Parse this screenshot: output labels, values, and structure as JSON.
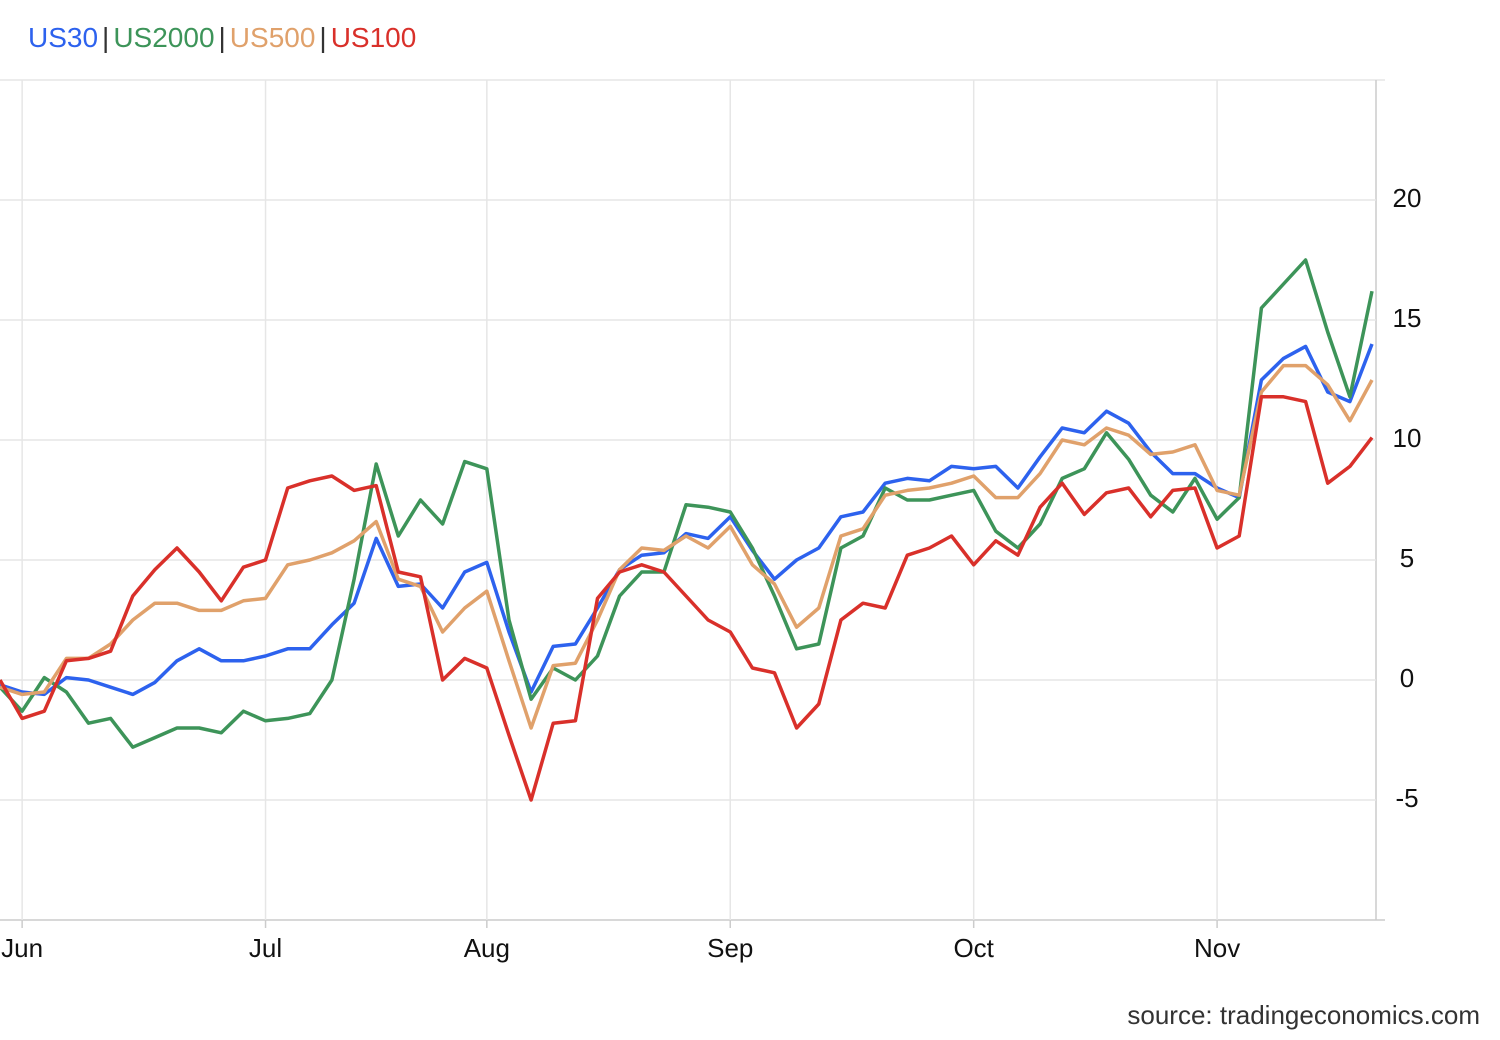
{
  "chart_data": {
    "type": "line",
    "categories": [
      null,
      "Jun",
      null,
      null,
      null,
      null,
      null,
      null,
      null,
      null,
      null,
      null,
      "Jul",
      null,
      null,
      null,
      null,
      null,
      null,
      null,
      null,
      null,
      "Aug",
      null,
      null,
      null,
      null,
      null,
      null,
      null,
      null,
      null,
      null,
      "Sep",
      null,
      null,
      null,
      null,
      null,
      null,
      null,
      null,
      null,
      null,
      "Oct",
      null,
      null,
      null,
      null,
      null,
      null,
      null,
      null,
      null,
      null,
      "Nov",
      null,
      null,
      null,
      null,
      null,
      null,
      null
    ],
    "series": [
      {
        "name": "US30",
        "color": "#2d62ee",
        "values": [
          -0.2,
          -0.5,
          -0.6,
          0.1,
          0,
          -0.3,
          -0.6,
          -0.1,
          0.8,
          1.3,
          0.8,
          0.8,
          1.0,
          1.3,
          1.3,
          2.3,
          3.2,
          5.9,
          3.9,
          4.0,
          3.0,
          4.5,
          4.9,
          2.0,
          -0.5,
          1.4,
          1.5,
          3.0,
          4.6,
          5.2,
          5.3,
          6.1,
          5.9,
          6.8,
          5.4,
          4.2,
          5.0,
          5.5,
          6.8,
          7.0,
          8.2,
          8.4,
          8.3,
          8.9,
          8.8,
          8.9,
          8.0,
          9.3,
          10.5,
          10.3,
          11.2,
          10.7,
          9.5,
          8.6,
          8.6,
          8.0,
          7.6,
          12.5,
          13.4,
          13.9,
          12.0,
          11.6,
          14.0
        ]
      },
      {
        "name": "US2000",
        "color": "#3d9459",
        "values": [
          -0.3,
          -1.3,
          0.1,
          -0.5,
          -1.8,
          -1.6,
          -2.8,
          -2.4,
          -2.0,
          -2.0,
          -2.2,
          -1.3,
          -1.7,
          -1.6,
          -1.4,
          0.0,
          4.2,
          9.0,
          6.0,
          7.5,
          6.5,
          9.1,
          8.8,
          2.5,
          -0.8,
          0.5,
          0.0,
          1.0,
          3.5,
          4.5,
          4.5,
          7.3,
          7.2,
          7.0,
          5.5,
          3.5,
          1.3,
          1.5,
          5.5,
          6.0,
          8.0,
          7.5,
          7.5,
          7.7,
          7.9,
          6.2,
          5.5,
          6.5,
          8.4,
          8.8,
          10.3,
          9.2,
          7.7,
          7.0,
          8.4,
          6.7,
          7.6,
          15.5,
          16.5,
          17.5,
          14.5,
          11.8,
          16.2
        ]
      },
      {
        "name": "US500",
        "color": "#e0a16b",
        "values": [
          -0.3,
          -0.6,
          -0.5,
          0.9,
          0.9,
          1.5,
          2.5,
          3.2,
          3.2,
          2.9,
          2.9,
          3.3,
          3.4,
          4.8,
          5.0,
          5.3,
          5.8,
          6.6,
          4.2,
          3.9,
          2.0,
          3.0,
          3.7,
          0.8,
          -2.0,
          0.6,
          0.7,
          2.5,
          4.6,
          5.5,
          5.4,
          6.0,
          5.5,
          6.4,
          4.8,
          4.0,
          2.2,
          3.0,
          6.0,
          6.3,
          7.7,
          7.9,
          8.0,
          8.2,
          8.5,
          7.6,
          7.6,
          8.6,
          10.0,
          9.8,
          10.5,
          10.2,
          9.4,
          9.5,
          9.8,
          7.9,
          7.7,
          12.0,
          13.1,
          13.1,
          12.3,
          10.8,
          12.5
        ]
      },
      {
        "name": "US100",
        "color": "#d9302a",
        "values": [
          0.0,
          -1.6,
          -1.3,
          0.8,
          0.9,
          1.2,
          3.5,
          4.6,
          5.5,
          4.5,
          3.3,
          4.7,
          5.0,
          8.0,
          8.3,
          8.5,
          7.9,
          8.1,
          4.5,
          4.3,
          0.0,
          0.9,
          0.5,
          -2.3,
          -5.0,
          -1.8,
          -1.7,
          3.4,
          4.5,
          4.8,
          4.5,
          3.5,
          2.5,
          2.0,
          0.5,
          0.3,
          -2.0,
          -1.0,
          2.5,
          3.2,
          3.0,
          5.2,
          5.5,
          6.0,
          4.8,
          5.8,
          5.2,
          7.2,
          8.2,
          6.9,
          7.8,
          8.0,
          6.8,
          7.9,
          8.0,
          5.5,
          6.0,
          11.8,
          11.8,
          11.6,
          8.2,
          8.9,
          10.1
        ]
      }
    ],
    "ylim": [
      -10,
      25
    ],
    "yticks": [
      -5,
      0,
      5,
      10,
      15,
      20
    ],
    "grid": true,
    "source": "source: tradingeconomics.com"
  }
}
